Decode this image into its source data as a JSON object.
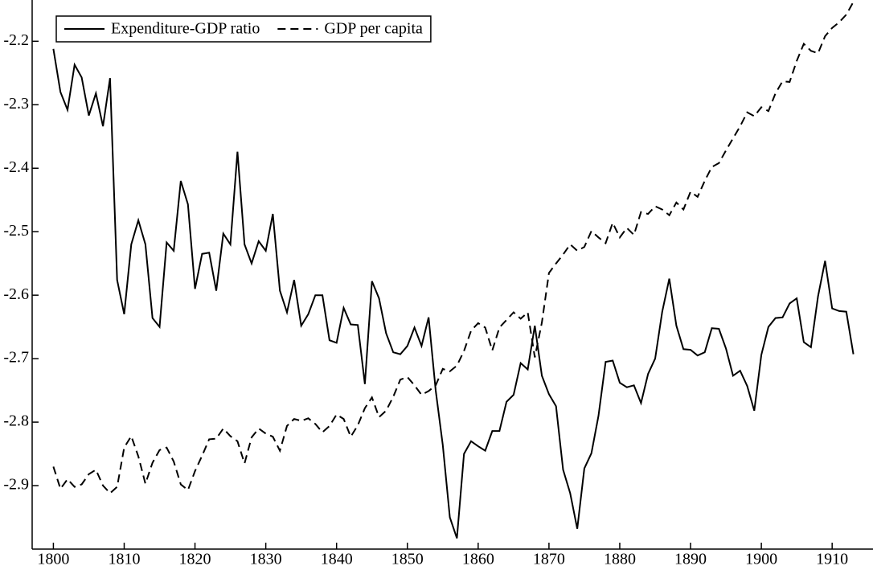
{
  "chart_data": {
    "type": "line",
    "x": [
      1800,
      1801,
      1802,
      1803,
      1804,
      1805,
      1806,
      1807,
      1808,
      1809,
      1810,
      1811,
      1812,
      1813,
      1814,
      1815,
      1816,
      1817,
      1818,
      1819,
      1820,
      1821,
      1822,
      1823,
      1824,
      1825,
      1826,
      1827,
      1828,
      1829,
      1830,
      1831,
      1832,
      1833,
      1834,
      1835,
      1836,
      1837,
      1838,
      1839,
      1840,
      1841,
      1842,
      1843,
      1844,
      1845,
      1846,
      1847,
      1848,
      1849,
      1850,
      1851,
      1852,
      1853,
      1854,
      1855,
      1856,
      1857,
      1858,
      1859,
      1860,
      1861,
      1862,
      1863,
      1864,
      1865,
      1866,
      1867,
      1868,
      1869,
      1870,
      1871,
      1872,
      1873,
      1874,
      1875,
      1876,
      1877,
      1878,
      1879,
      1880,
      1881,
      1882,
      1883,
      1884,
      1885,
      1886,
      1887,
      1888,
      1889,
      1890,
      1891,
      1892,
      1893,
      1894,
      1895,
      1896,
      1897,
      1898,
      1899,
      1900,
      1901,
      1902,
      1903,
      1904,
      1905,
      1906,
      1907,
      1908,
      1909,
      1910,
      1911,
      1912,
      1913
    ],
    "series": [
      {
        "name": "Expenditure-GDP ratio",
        "color": "#000000",
        "dash": false,
        "values": [
          -2.212,
          -2.28,
          -2.308,
          -2.237,
          -2.257,
          -2.317,
          -2.282,
          -2.334,
          -2.258,
          -2.576,
          -2.63,
          -2.52,
          -2.482,
          -2.52,
          -2.636,
          -2.65,
          -2.517,
          -2.53,
          -2.42,
          -2.457,
          -2.59,
          -2.535,
          -2.533,
          -2.593,
          -2.503,
          -2.52,
          -2.374,
          -2.52,
          -2.55,
          -2.515,
          -2.53,
          -2.472,
          -2.593,
          -2.627,
          -2.576,
          -2.648,
          -2.63,
          -2.6,
          -2.6,
          -2.671,
          -2.675,
          -2.62,
          -2.646,
          -2.647,
          -2.74,
          -2.578,
          -2.605,
          -2.66,
          -2.69,
          -2.693,
          -2.68,
          -2.651,
          -2.68,
          -2.635,
          -2.75,
          -2.836,
          -2.95,
          -2.983,
          -2.85,
          -2.83,
          -2.838,
          -2.845,
          -2.814,
          -2.814,
          -2.768,
          -2.757,
          -2.707,
          -2.717,
          -2.648,
          -2.727,
          -2.756,
          -2.775,
          -2.875,
          -2.912,
          -2.968,
          -2.873,
          -2.849,
          -2.79,
          -2.705,
          -2.703,
          -2.738,
          -2.745,
          -2.742,
          -2.77,
          -2.724,
          -2.7,
          -2.626,
          -2.574,
          -2.648,
          -2.685,
          -2.686,
          -2.695,
          -2.69,
          -2.652,
          -2.653,
          -2.684,
          -2.727,
          -2.719,
          -2.743,
          -2.782,
          -2.694,
          -2.65,
          -2.636,
          -2.635,
          -2.613,
          -2.605,
          -2.674,
          -2.682,
          -2.602,
          -2.546,
          -2.621,
          -2.625,
          -2.626,
          -2.693
        ]
      },
      {
        "name": "GDP per capita",
        "color": "#000000",
        "dash": true,
        "values": [
          -2.87,
          -2.905,
          -2.89,
          -2.902,
          -2.898,
          -2.882,
          -2.875,
          -2.9,
          -2.912,
          -2.902,
          -2.84,
          -2.822,
          -2.854,
          -2.897,
          -2.864,
          -2.844,
          -2.84,
          -2.862,
          -2.898,
          -2.907,
          -2.877,
          -2.853,
          -2.827,
          -2.826,
          -2.81,
          -2.822,
          -2.83,
          -2.865,
          -2.824,
          -2.81,
          -2.818,
          -2.823,
          -2.845,
          -2.806,
          -2.795,
          -2.798,
          -2.794,
          -2.803,
          -2.816,
          -2.806,
          -2.788,
          -2.795,
          -2.823,
          -2.805,
          -2.778,
          -2.761,
          -2.792,
          -2.782,
          -2.76,
          -2.733,
          -2.729,
          -2.742,
          -2.757,
          -2.751,
          -2.742,
          -2.716,
          -2.72,
          -2.711,
          -2.688,
          -2.656,
          -2.644,
          -2.651,
          -2.687,
          -2.651,
          -2.639,
          -2.627,
          -2.637,
          -2.627,
          -2.698,
          -2.643,
          -2.565,
          -2.55,
          -2.536,
          -2.52,
          -2.53,
          -2.524,
          -2.499,
          -2.509,
          -2.518,
          -2.486,
          -2.509,
          -2.494,
          -2.505,
          -2.469,
          -2.472,
          -2.46,
          -2.465,
          -2.474,
          -2.454,
          -2.465,
          -2.437,
          -2.445,
          -2.42,
          -2.398,
          -2.392,
          -2.372,
          -2.353,
          -2.334,
          -2.312,
          -2.318,
          -2.304,
          -2.31,
          -2.282,
          -2.263,
          -2.264,
          -2.231,
          -2.204,
          -2.215,
          -2.219,
          -2.192,
          -2.179,
          -2.17,
          -2.158,
          -2.138
        ]
      }
    ],
    "xlim": [
      1797,
      1913.5
    ],
    "xticks": [
      1800,
      1810,
      1820,
      1830,
      1840,
      1850,
      1860,
      1870,
      1880,
      1890,
      1900,
      1910
    ],
    "ylim": [
      -3.0,
      -2.135
    ],
    "yticks": [
      -2.9,
      -2.8,
      -2.7,
      -2.6,
      -2.5,
      -2.4,
      -2.3,
      -2.2
    ],
    "legend": "top-left"
  }
}
